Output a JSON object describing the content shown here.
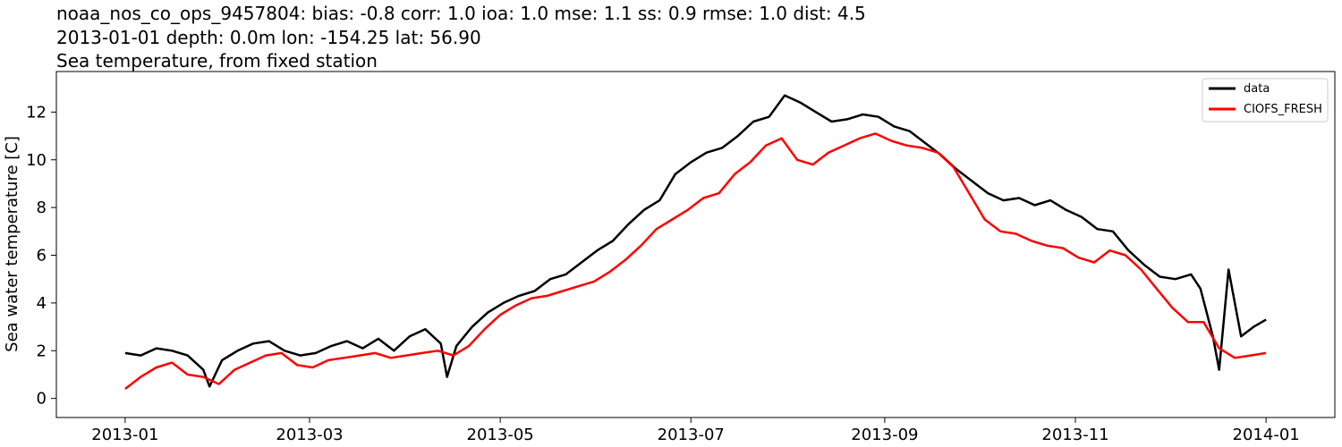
{
  "chart_data": {
    "type": "line",
    "title_lines": [
      "noaa_nos_co_ops_9457804: bias: -0.8  corr: 1.0  ioa: 1.0  mse: 1.1  ss: 0.9  rmse: 1.0  dist: 4.5",
      "2013-01-01 depth: 0.0m lon: -154.25 lat: 56.90",
      "Sea temperature, from fixed station"
    ],
    "xlabel": "",
    "ylabel": "Sea water temperature [C]",
    "x_ticks": [
      "2013-01",
      "2013-03",
      "2013-05",
      "2013-07",
      "2013-09",
      "2013-11",
      "2014-01"
    ],
    "y_ticks": [
      0,
      2,
      4,
      6,
      8,
      10,
      12
    ],
    "xlim": [
      "2012-12-10",
      "2014-01-23"
    ],
    "ylim": [
      -0.8,
      13.7
    ],
    "grid": false,
    "legend_position": "top-right",
    "series": [
      {
        "name": "data",
        "color": "#000000",
        "x": [
          "2013-01-01",
          "2013-01-06",
          "2013-01-11",
          "2013-01-16",
          "2013-01-21",
          "2013-01-26",
          "2013-01-28",
          "2013-02-01",
          "2013-02-06",
          "2013-02-11",
          "2013-02-16",
          "2013-02-21",
          "2013-02-26",
          "2013-03-03",
          "2013-03-08",
          "2013-03-13",
          "2013-03-18",
          "2013-03-23",
          "2013-03-28",
          "2013-04-02",
          "2013-04-07",
          "2013-04-12",
          "2013-04-14",
          "2013-04-17",
          "2013-04-22",
          "2013-04-27",
          "2013-05-02",
          "2013-05-07",
          "2013-05-12",
          "2013-05-17",
          "2013-05-22",
          "2013-05-27",
          "2013-06-01",
          "2013-06-06",
          "2013-06-11",
          "2013-06-16",
          "2013-06-21",
          "2013-06-26",
          "2013-07-01",
          "2013-07-06",
          "2013-07-11",
          "2013-07-16",
          "2013-07-21",
          "2013-07-26",
          "2013-07-31",
          "2013-08-05",
          "2013-08-10",
          "2013-08-15",
          "2013-08-20",
          "2013-08-25",
          "2013-08-30",
          "2013-09-04",
          "2013-09-09",
          "2013-09-14",
          "2013-09-19",
          "2013-09-24",
          "2013-09-29",
          "2013-10-04",
          "2013-10-09",
          "2013-10-14",
          "2013-10-19",
          "2013-10-24",
          "2013-10-29",
          "2013-11-03",
          "2013-11-08",
          "2013-11-13",
          "2013-11-18",
          "2013-11-23",
          "2013-11-28",
          "2013-12-03",
          "2013-12-08",
          "2013-12-11",
          "2013-12-15",
          "2013-12-17",
          "2013-12-20",
          "2013-12-24",
          "2013-12-28",
          "2014-01-01"
        ],
        "y": [
          1.9,
          1.8,
          2.1,
          2.0,
          1.8,
          1.2,
          0.5,
          1.6,
          2.0,
          2.3,
          2.4,
          2.0,
          1.8,
          1.9,
          2.2,
          2.4,
          2.1,
          2.5,
          2.0,
          2.6,
          2.9,
          2.3,
          0.9,
          2.2,
          3.0,
          3.6,
          4.0,
          4.3,
          4.5,
          5.0,
          5.2,
          5.7,
          6.2,
          6.6,
          7.3,
          7.9,
          8.3,
          9.4,
          9.9,
          10.3,
          10.5,
          11.0,
          11.6,
          11.8,
          12.7,
          12.4,
          12.0,
          11.6,
          11.7,
          11.9,
          11.8,
          11.4,
          11.2,
          10.7,
          10.2,
          9.6,
          9.1,
          8.6,
          8.3,
          8.4,
          8.1,
          8.3,
          7.9,
          7.6,
          7.1,
          7.0,
          6.2,
          5.6,
          5.1,
          5.0,
          5.2,
          4.6,
          2.6,
          1.2,
          5.4,
          2.6,
          3.0,
          3.3
        ]
      },
      {
        "name": "CIOFS_FRESH",
        "color": "#ff0000",
        "x": [
          "2013-01-01",
          "2013-01-06",
          "2013-01-11",
          "2013-01-16",
          "2013-01-21",
          "2013-01-26",
          "2013-01-31",
          "2013-02-05",
          "2013-02-10",
          "2013-02-15",
          "2013-02-20",
          "2013-02-25",
          "2013-03-02",
          "2013-03-07",
          "2013-03-12",
          "2013-03-17",
          "2013-03-22",
          "2013-03-27",
          "2013-04-01",
          "2013-04-06",
          "2013-04-11",
          "2013-04-16",
          "2013-04-21",
          "2013-04-26",
          "2013-05-01",
          "2013-05-06",
          "2013-05-11",
          "2013-05-16",
          "2013-05-21",
          "2013-05-26",
          "2013-05-31",
          "2013-06-05",
          "2013-06-10",
          "2013-06-15",
          "2013-06-20",
          "2013-06-25",
          "2013-06-30",
          "2013-07-05",
          "2013-07-10",
          "2013-07-15",
          "2013-07-20",
          "2013-07-25",
          "2013-07-30",
          "2013-08-04",
          "2013-08-09",
          "2013-08-14",
          "2013-08-19",
          "2013-08-24",
          "2013-08-29",
          "2013-09-03",
          "2013-09-08",
          "2013-09-13",
          "2013-09-18",
          "2013-09-23",
          "2013-09-28",
          "2013-10-03",
          "2013-10-08",
          "2013-10-13",
          "2013-10-18",
          "2013-10-23",
          "2013-10-28",
          "2013-11-02",
          "2013-11-07",
          "2013-11-12",
          "2013-11-17",
          "2013-11-22",
          "2013-11-27",
          "2013-12-02",
          "2013-12-07",
          "2013-12-12",
          "2013-12-17",
          "2013-12-22",
          "2013-12-27",
          "2014-01-01"
        ],
        "y": [
          0.4,
          0.9,
          1.3,
          1.5,
          1.0,
          0.9,
          0.6,
          1.2,
          1.5,
          1.8,
          1.9,
          1.4,
          1.3,
          1.6,
          1.7,
          1.8,
          1.9,
          1.7,
          1.8,
          1.9,
          2.0,
          1.8,
          2.2,
          2.9,
          3.5,
          3.9,
          4.2,
          4.3,
          4.5,
          4.7,
          4.9,
          5.3,
          5.8,
          6.4,
          7.1,
          7.5,
          7.9,
          8.4,
          8.6,
          9.4,
          9.9,
          10.6,
          10.9,
          10.0,
          9.8,
          10.3,
          10.6,
          10.9,
          11.1,
          10.8,
          10.6,
          10.5,
          10.3,
          9.7,
          8.6,
          7.5,
          7.0,
          6.9,
          6.6,
          6.4,
          6.3,
          5.9,
          5.7,
          6.2,
          6.0,
          5.4,
          4.6,
          3.8,
          3.2,
          3.2,
          2.1,
          1.7,
          1.8,
          1.9
        ]
      }
    ]
  }
}
